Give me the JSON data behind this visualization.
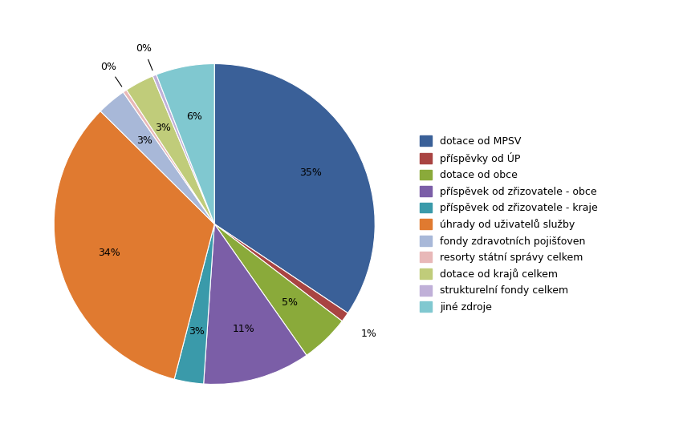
{
  "labels": [
    "dotace od MPSV",
    "příspěvky od ÚP",
    "dotace od obce",
    "příspěvek od zřizovatele - obce",
    "příspěvek od zřizovatele - kraje",
    "úhrady od uživatelů služby",
    "fondy zdravotních pojišťoven",
    "resorty státní správy celkem",
    "dotace od krajů celkem",
    "strukturelní fondy celkem",
    "jiné zdroje"
  ],
  "values": [
    35,
    1,
    5,
    11,
    3,
    34,
    3,
    0.4,
    3,
    0.4,
    6
  ],
  "colors": [
    "#3a6098",
    "#a94442",
    "#8aaa3a",
    "#7b5ea7",
    "#3a9aaa",
    "#e07a30",
    "#a8b8d8",
    "#e8b8b8",
    "#c0cc7a",
    "#c0b0d8",
    "#80c8d0"
  ],
  "legend_labels": [
    "dotace od MPSV",
    "příspěvky od ÚP",
    "dotace od obce",
    "příspěvek od zřizovatele - obce",
    "příspěvek od zřizovatele - kraje",
    "úhrady od uživatelů služby",
    "fondy zdravotních pojišťoven",
    "resorty státní správy celkem",
    "dotace od krajů celkem",
    "strukturelní fondy celkem",
    "jiné zdroje"
  ],
  "pct_labels": [
    "35%",
    "1%",
    "5%",
    "11%",
    "3%",
    "34%",
    "3%",
    "0%",
    "3%",
    "0%",
    "6%"
  ],
  "show_label": [
    true,
    true,
    true,
    true,
    true,
    true,
    true,
    true,
    true,
    true,
    true
  ],
  "label_inside": [
    true,
    true,
    true,
    true,
    true,
    true,
    false,
    false,
    false,
    false,
    true
  ],
  "background_color": "#ffffff",
  "figsize": [
    8.62,
    5.59
  ]
}
